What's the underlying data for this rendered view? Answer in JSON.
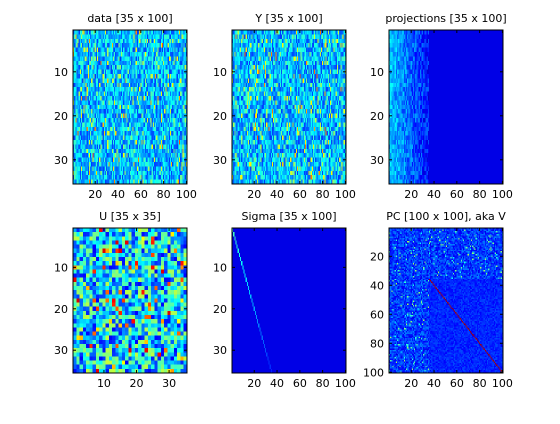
{
  "figure": {
    "background": "#ffffff",
    "colormap": "jet",
    "colormap_stops": [
      "#00008f",
      "#0000ff",
      "#00ffff",
      "#ffff00",
      "#ff0000",
      "#800000"
    ]
  },
  "chart_data": [
    {
      "id": "data",
      "type": "heatmap",
      "title": "data [35 x 100]",
      "rows": 35,
      "cols": 100,
      "pattern": "random_blue_noise",
      "value_range": [
        0,
        1
      ],
      "xticks": [
        20,
        40,
        60,
        80,
        100
      ],
      "yticks": [
        10,
        20,
        30
      ],
      "xlim": [
        0.5,
        100.5
      ],
      "ylim": [
        0.5,
        35.5
      ],
      "grid": false
    },
    {
      "id": "Y",
      "type": "heatmap",
      "title": "Y [35 x 100]",
      "rows": 35,
      "cols": 100,
      "pattern": "random_blue_noise",
      "value_range": [
        0,
        1
      ],
      "xticks": [
        20,
        40,
        60,
        80,
        100
      ],
      "yticks": [
        10,
        20,
        30
      ],
      "xlim": [
        0.5,
        100.5
      ],
      "ylim": [
        0.5,
        35.5
      ],
      "grid": false
    },
    {
      "id": "projections",
      "type": "heatmap",
      "title": "projections [35 x 100]",
      "rows": 35,
      "cols": 100,
      "pattern": "energy_decays_by_column_zero_after_35",
      "value_range": [
        0,
        1
      ],
      "nonzero_columns": 35,
      "xticks": [
        20,
        40,
        60,
        80,
        100
      ],
      "yticks": [
        10,
        20,
        30
      ],
      "xlim": [
        0.5,
        100.5
      ],
      "ylim": [
        0.5,
        35.5
      ],
      "grid": false
    },
    {
      "id": "U",
      "type": "heatmap",
      "title": "U [35 x 35]",
      "rows": 35,
      "cols": 35,
      "pattern": "random_mixed_values",
      "value_range": [
        0,
        1
      ],
      "xticks": [
        10,
        20,
        30
      ],
      "yticks": [
        10,
        20,
        30
      ],
      "xlim": [
        0.5,
        35.5
      ],
      "ylim": [
        0.5,
        35.5
      ],
      "grid": false
    },
    {
      "id": "Sigma",
      "type": "heatmap",
      "title": "Sigma [35 x 100]",
      "rows": 35,
      "cols": 100,
      "pattern": "diagonal_singular_values_decreasing",
      "value_range": [
        0,
        1
      ],
      "diagonal_length": 35,
      "xticks": [
        20,
        40,
        60,
        80,
        100
      ],
      "yticks": [
        10,
        20,
        30
      ],
      "xlim": [
        0.5,
        100.5
      ],
      "ylim": [
        0.5,
        35.5
      ],
      "grid": false
    },
    {
      "id": "PC",
      "type": "heatmap",
      "title": "PC [100 x 100], aka V",
      "rows": 100,
      "cols": 100,
      "pattern": "noise_with_identity_block_from_35",
      "value_range": [
        0,
        1
      ],
      "identity_start": 36,
      "xticks": [
        20,
        40,
        60,
        80,
        100
      ],
      "yticks": [
        20,
        40,
        60,
        80,
        100
      ],
      "xlim": [
        0.5,
        100.5
      ],
      "ylim": [
        0.5,
        100.5
      ],
      "grid": false
    }
  ]
}
